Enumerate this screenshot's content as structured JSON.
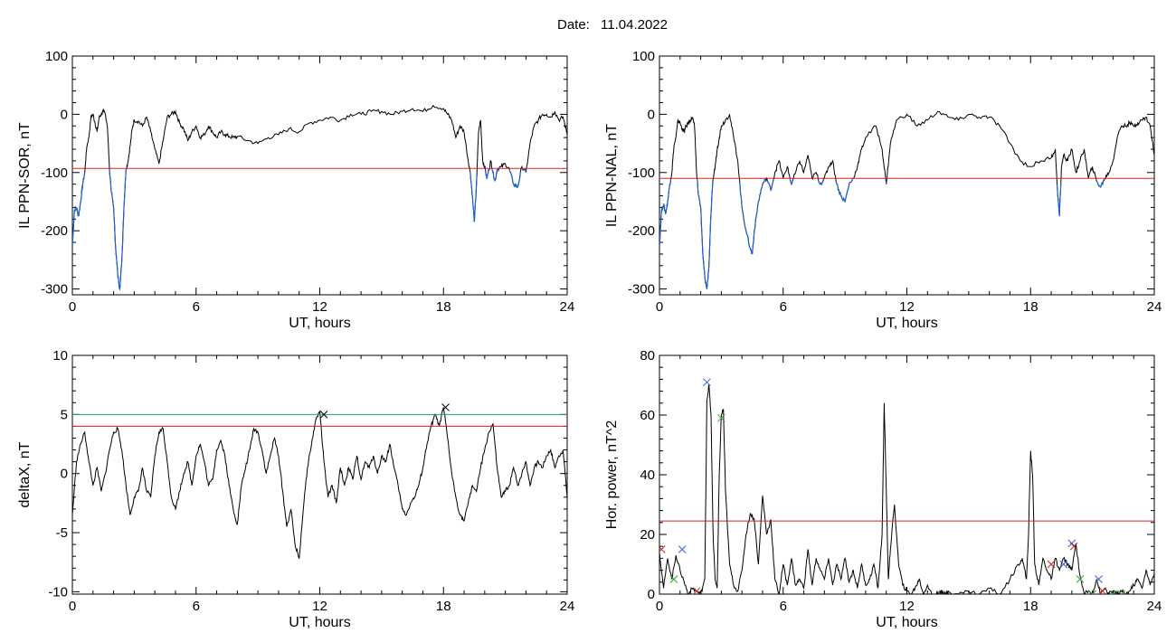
{
  "header": {
    "date_label": "Date:",
    "date_value": "11.04.2022"
  },
  "colors": {
    "trace": "#000000",
    "highlight": "#1f5fd0",
    "threshold": "#e02020",
    "threshold_alt": "#2a9a8a",
    "marker_blue": "#3a5fe0",
    "marker_green": "#2fa52f",
    "marker_red": "#cc2020"
  },
  "chart_data": [
    {
      "id": "sor",
      "type": "line",
      "xlabel": "UT, hours",
      "ylabel": "IL PPN-SOR, nT",
      "xlim": [
        0,
        24
      ],
      "ylim": [
        -310,
        100
      ],
      "xticks": [
        0,
        6,
        12,
        18,
        24
      ],
      "yticks": [
        -300,
        -200,
        -100,
        0,
        100
      ],
      "threshold": -93,
      "x": [
        0.0,
        0.1,
        0.2,
        0.3,
        0.4,
        0.5,
        0.6,
        0.7,
        0.8,
        0.9,
        1.0,
        1.1,
        1.2,
        1.3,
        1.4,
        1.5,
        1.6,
        1.7,
        1.8,
        1.9,
        2.0,
        2.1,
        2.2,
        2.3,
        2.4,
        2.5,
        2.6,
        2.7,
        2.8,
        2.9,
        3.0,
        3.2,
        3.4,
        3.6,
        3.8,
        4.0,
        4.2,
        4.4,
        4.6,
        4.8,
        5.0,
        5.2,
        5.4,
        5.6,
        5.8,
        6.0,
        6.2,
        6.4,
        6.6,
        6.8,
        7.0,
        7.2,
        7.4,
        7.6,
        7.8,
        8.0,
        8.5,
        9.0,
        9.5,
        10.0,
        10.5,
        11.0,
        11.5,
        12.0,
        12.5,
        13.0,
        13.5,
        14.0,
        14.5,
        15.0,
        15.5,
        16.0,
        16.5,
        17.0,
        17.5,
        18.0,
        18.2,
        18.4,
        18.6,
        18.8,
        19.0,
        19.2,
        19.3,
        19.4,
        19.5,
        19.6,
        19.7,
        19.8,
        19.9,
        20.0,
        20.1,
        20.2,
        20.3,
        20.4,
        20.5,
        20.6,
        20.8,
        21.0,
        21.2,
        21.4,
        21.6,
        21.8,
        22.0,
        22.2,
        22.4,
        22.6,
        22.8,
        23.0,
        23.2,
        23.4,
        23.6,
        23.8,
        24.0
      ],
      "y": [
        -225,
        -165,
        -160,
        -175,
        -150,
        -120,
        -100,
        -55,
        -40,
        -5,
        0,
        -15,
        -30,
        -5,
        0,
        5,
        0,
        -20,
        -95,
        -135,
        -160,
        -230,
        -275,
        -300,
        -250,
        -160,
        -95,
        -80,
        -55,
        -25,
        -10,
        -12,
        -20,
        -5,
        -30,
        -60,
        -85,
        -45,
        -5,
        0,
        5,
        -15,
        -25,
        -45,
        -30,
        -20,
        -40,
        -35,
        -20,
        -30,
        -40,
        -30,
        -35,
        -38,
        -40,
        -38,
        -45,
        -50,
        -40,
        -35,
        -25,
        -30,
        -15,
        -10,
        -5,
        -10,
        0,
        0,
        5,
        5,
        0,
        5,
        10,
        5,
        15,
        10,
        0,
        -10,
        -40,
        -20,
        -30,
        -80,
        -100,
        -140,
        -185,
        -120,
        -30,
        -10,
        -80,
        -90,
        -110,
        -95,
        -80,
        -100,
        -115,
        -95,
        -90,
        -85,
        -95,
        -120,
        -125,
        -90,
        -100,
        -50,
        -20,
        -10,
        0,
        0,
        -5,
        5,
        -10,
        -5,
        -35
      ]
    },
    {
      "id": "nal",
      "type": "line",
      "xlabel": "UT, hours",
      "ylabel": "IL PPN-NAL, nT",
      "xlim": [
        0,
        24
      ],
      "ylim": [
        -310,
        100
      ],
      "xticks": [
        0,
        6,
        12,
        18,
        24
      ],
      "yticks": [
        -300,
        -200,
        -100,
        0,
        100
      ],
      "threshold": -110,
      "x": [
        0.0,
        0.1,
        0.2,
        0.3,
        0.4,
        0.5,
        0.6,
        0.7,
        0.8,
        0.9,
        1.0,
        1.1,
        1.2,
        1.3,
        1.4,
        1.5,
        1.6,
        1.7,
        1.8,
        1.9,
        2.0,
        2.1,
        2.2,
        2.3,
        2.4,
        2.5,
        2.6,
        2.7,
        2.8,
        2.9,
        3.0,
        3.2,
        3.4,
        3.6,
        3.8,
        4.0,
        4.2,
        4.4,
        4.5,
        4.6,
        4.8,
        5.0,
        5.2,
        5.4,
        5.6,
        5.8,
        6.0,
        6.2,
        6.4,
        6.6,
        6.8,
        7.0,
        7.2,
        7.4,
        7.6,
        7.8,
        8.0,
        8.2,
        8.4,
        8.6,
        8.8,
        9.0,
        9.2,
        9.4,
        9.6,
        9.8,
        10.0,
        10.5,
        10.8,
        11.0,
        11.2,
        11.5,
        12.0,
        12.5,
        13.0,
        13.5,
        14.0,
        14.5,
        15.0,
        15.5,
        16.0,
        16.5,
        17.0,
        17.5,
        18.0,
        18.5,
        19.0,
        19.2,
        19.3,
        19.4,
        19.5,
        19.6,
        19.8,
        20.0,
        20.2,
        20.4,
        20.6,
        20.8,
        21.0,
        21.2,
        21.4,
        21.6,
        21.8,
        22.0,
        22.2,
        22.4,
        22.6,
        22.8,
        23.0,
        23.2,
        23.4,
        23.6,
        23.8,
        24.0
      ],
      "y": [
        -225,
        -165,
        -155,
        -170,
        -150,
        -120,
        -100,
        -55,
        -40,
        -10,
        -15,
        -25,
        -30,
        -20,
        -15,
        -10,
        -5,
        -20,
        -100,
        -140,
        -160,
        -240,
        -280,
        -300,
        -260,
        -170,
        -110,
        -90,
        -60,
        -40,
        -20,
        -10,
        0,
        -40,
        -80,
        -160,
        -200,
        -230,
        -240,
        -200,
        -150,
        -120,
        -110,
        -130,
        -100,
        -80,
        -110,
        -90,
        -120,
        -100,
        -80,
        -100,
        -70,
        -110,
        -100,
        -120,
        -110,
        -90,
        -80,
        -120,
        -140,
        -150,
        -120,
        -110,
        -90,
        -60,
        -40,
        -20,
        -60,
        -120,
        -50,
        -10,
        0,
        -20,
        -10,
        5,
        -5,
        -10,
        0,
        -5,
        -5,
        -20,
        -50,
        -80,
        -90,
        -80,
        -75,
        -60,
        -130,
        -175,
        -90,
        -70,
        -80,
        -60,
        -100,
        -80,
        -60,
        -110,
        -90,
        -115,
        -125,
        -110,
        -100,
        -80,
        -40,
        -20,
        -20,
        -15,
        -20,
        -15,
        -10,
        -5,
        -20,
        -70
      ]
    },
    {
      "id": "deltax",
      "type": "line",
      "xlabel": "UT, hours",
      "ylabel": "deltaX, nT",
      "xlim": [
        0,
        24
      ],
      "ylim": [
        -10.2,
        10
      ],
      "xticks": [
        0,
        6,
        12,
        18,
        24
      ],
      "yticks": [
        -10,
        -5,
        0,
        5,
        10
      ],
      "threshold": 4,
      "threshold2": 5,
      "x": [
        0.0,
        0.2,
        0.4,
        0.6,
        0.8,
        1.0,
        1.2,
        1.4,
        1.6,
        1.8,
        2.0,
        2.2,
        2.4,
        2.6,
        2.8,
        3.0,
        3.2,
        3.4,
        3.6,
        3.8,
        4.0,
        4.2,
        4.4,
        4.6,
        4.8,
        5.0,
        5.2,
        5.4,
        5.6,
        5.8,
        6.0,
        6.2,
        6.4,
        6.6,
        6.8,
        7.0,
        7.2,
        7.4,
        7.6,
        7.8,
        8.0,
        8.2,
        8.4,
        8.6,
        8.8,
        9.0,
        9.2,
        9.4,
        9.6,
        9.8,
        10.0,
        10.2,
        10.4,
        10.6,
        10.8,
        11.0,
        11.2,
        11.4,
        11.6,
        11.8,
        12.0,
        12.2,
        12.4,
        12.6,
        12.8,
        13.0,
        13.2,
        13.4,
        13.6,
        13.8,
        14.0,
        14.2,
        14.4,
        14.6,
        14.8,
        15.0,
        15.2,
        15.4,
        15.6,
        15.8,
        16.0,
        16.2,
        16.4,
        16.6,
        16.8,
        17.0,
        17.2,
        17.4,
        17.6,
        17.8,
        18.0,
        18.2,
        18.4,
        18.6,
        18.8,
        19.0,
        19.2,
        19.4,
        19.6,
        19.8,
        20.0,
        20.2,
        20.4,
        20.6,
        20.8,
        21.0,
        21.2,
        21.4,
        21.6,
        21.8,
        22.0,
        22.2,
        22.4,
        22.6,
        22.8,
        23.0,
        23.2,
        23.4,
        23.6,
        23.8,
        24.0
      ],
      "y": [
        -3.5,
        1.0,
        2.5,
        3.5,
        1.0,
        -1.0,
        0.5,
        -1.5,
        0.0,
        2.0,
        3.5,
        3.8,
        2.0,
        -1.0,
        -3.5,
        -2.0,
        -1.5,
        0.5,
        -1.5,
        -2.0,
        1.5,
        3.5,
        3.8,
        1.0,
        -2.0,
        -3.0,
        -1.5,
        0.0,
        1.0,
        -1.0,
        1.5,
        2.5,
        1.0,
        -1.0,
        -0.5,
        2.0,
        2.8,
        1.5,
        -1.0,
        -3.0,
        -4.3,
        -1.0,
        0.5,
        2.0,
        3.8,
        3.5,
        2.0,
        0.0,
        1.5,
        3.0,
        1.5,
        -1.5,
        -4.5,
        -3.0,
        -6.0,
        -7.2,
        -3.0,
        0.5,
        2.5,
        4.5,
        5.3,
        1.0,
        -2.0,
        -1.0,
        -2.5,
        0.5,
        -1.0,
        0.5,
        -0.5,
        1.5,
        -0.5,
        1.0,
        0.5,
        1.5,
        0.0,
        1.5,
        1.0,
        2.5,
        0.5,
        -1.0,
        -3.0,
        -3.5,
        -2.5,
        -2.0,
        -1.0,
        0.5,
        2.5,
        4.0,
        5.0,
        4.0,
        5.6,
        3.0,
        0.0,
        -2.0,
        -3.5,
        -4.0,
        -2.5,
        -1.0,
        -1.5,
        0.5,
        2.0,
        3.5,
        4.2,
        0.5,
        -2.0,
        -1.5,
        -1.0,
        0.5,
        -1.0,
        0.0,
        1.0,
        -1.0,
        0.5,
        1.0,
        0.5,
        1.5,
        2.0,
        0.5,
        1.5,
        2.0,
        -2.0
      ],
      "markers": [
        {
          "x": 12.2,
          "y": 5.0
        },
        {
          "x": 18.1,
          "y": 5.6
        }
      ]
    },
    {
      "id": "power",
      "type": "line",
      "xlabel": "UT, hours",
      "ylabel": "Hor. power, nT^2",
      "xlim": [
        0,
        24
      ],
      "ylim": [
        0,
        80
      ],
      "xticks": [
        0,
        6,
        12,
        18,
        24
      ],
      "yticks": [
        0,
        20,
        40,
        60,
        80
      ],
      "threshold": 24.5,
      "x": [
        0.0,
        0.2,
        0.4,
        0.6,
        0.8,
        1.0,
        1.2,
        1.4,
        1.6,
        1.8,
        2.0,
        2.2,
        2.3,
        2.4,
        2.5,
        2.6,
        2.7,
        2.8,
        2.9,
        3.0,
        3.1,
        3.2,
        3.4,
        3.6,
        3.8,
        4.0,
        4.2,
        4.4,
        4.6,
        4.8,
        5.0,
        5.2,
        5.4,
        5.6,
        5.8,
        6.0,
        6.2,
        6.4,
        6.6,
        6.8,
        7.0,
        7.2,
        7.4,
        7.6,
        7.8,
        8.0,
        8.2,
        8.4,
        8.6,
        8.8,
        9.0,
        9.2,
        9.4,
        9.6,
        9.8,
        10.0,
        10.2,
        10.4,
        10.6,
        10.8,
        10.9,
        11.0,
        11.1,
        11.2,
        11.4,
        11.6,
        11.8,
        12.0,
        12.2,
        12.4,
        12.6,
        12.8,
        13.0,
        13.2,
        13.4,
        13.6,
        13.8,
        14.0,
        14.5,
        15.0,
        15.5,
        16.0,
        16.5,
        17.0,
        17.4,
        17.6,
        17.8,
        17.9,
        18.0,
        18.1,
        18.2,
        18.4,
        18.6,
        18.8,
        19.0,
        19.2,
        19.4,
        19.6,
        19.8,
        20.0,
        20.2,
        20.4,
        20.6,
        20.8,
        21.0,
        21.2,
        21.4,
        21.6,
        21.8,
        22.0,
        22.2,
        22.4,
        22.6,
        22.8,
        23.0,
        23.2,
        23.4,
        23.6,
        23.8,
        24.0
      ],
      "y": [
        14,
        2,
        12,
        5,
        13,
        8,
        4,
        0,
        2,
        1,
        0,
        5,
        65,
        70,
        60,
        20,
        5,
        2,
        40,
        60,
        62,
        35,
        10,
        3,
        1,
        8,
        20,
        27,
        25,
        10,
        33,
        20,
        25,
        5,
        0,
        10,
        3,
        12,
        3,
        5,
        2,
        15,
        3,
        12,
        8,
        5,
        12,
        3,
        10,
        5,
        12,
        4,
        8,
        2,
        10,
        3,
        5,
        10,
        2,
        20,
        64,
        35,
        5,
        15,
        30,
        10,
        3,
        1,
        0,
        2,
        5,
        0,
        3,
        0,
        0,
        1,
        0,
        1,
        0,
        1,
        0,
        2,
        0,
        5,
        10,
        12,
        5,
        20,
        48,
        40,
        10,
        3,
        12,
        8,
        5,
        12,
        8,
        12,
        10,
        8,
        17,
        6,
        0,
        1,
        0,
        5,
        0,
        2,
        0,
        1,
        0,
        1,
        0,
        1,
        3,
        5,
        2,
        8,
        3,
        7
      ],
      "markers": [
        {
          "x": 0.1,
          "y": 15,
          "color": "red"
        },
        {
          "x": 0.7,
          "y": 5,
          "color": "green"
        },
        {
          "x": 1.1,
          "y": 15,
          "color": "blue"
        },
        {
          "x": 1.8,
          "y": 1,
          "color": "red"
        },
        {
          "x": 2.3,
          "y": 71,
          "color": "blue"
        },
        {
          "x": 3.0,
          "y": 59,
          "color": "green"
        },
        {
          "x": 19.0,
          "y": 10,
          "color": "red"
        },
        {
          "x": 19.6,
          "y": 10,
          "color": "blue"
        },
        {
          "x": 20.0,
          "y": 17,
          "color": "blue"
        },
        {
          "x": 20.1,
          "y": 16,
          "color": "red"
        },
        {
          "x": 20.4,
          "y": 5,
          "color": "green"
        },
        {
          "x": 21.0,
          "y": 0,
          "color": "green"
        },
        {
          "x": 21.3,
          "y": 5,
          "color": "blue"
        },
        {
          "x": 21.5,
          "y": 1,
          "color": "red"
        },
        {
          "x": 22.0,
          "y": 0,
          "color": "green"
        },
        {
          "x": 22.4,
          "y": 0,
          "color": "green"
        }
      ]
    }
  ]
}
